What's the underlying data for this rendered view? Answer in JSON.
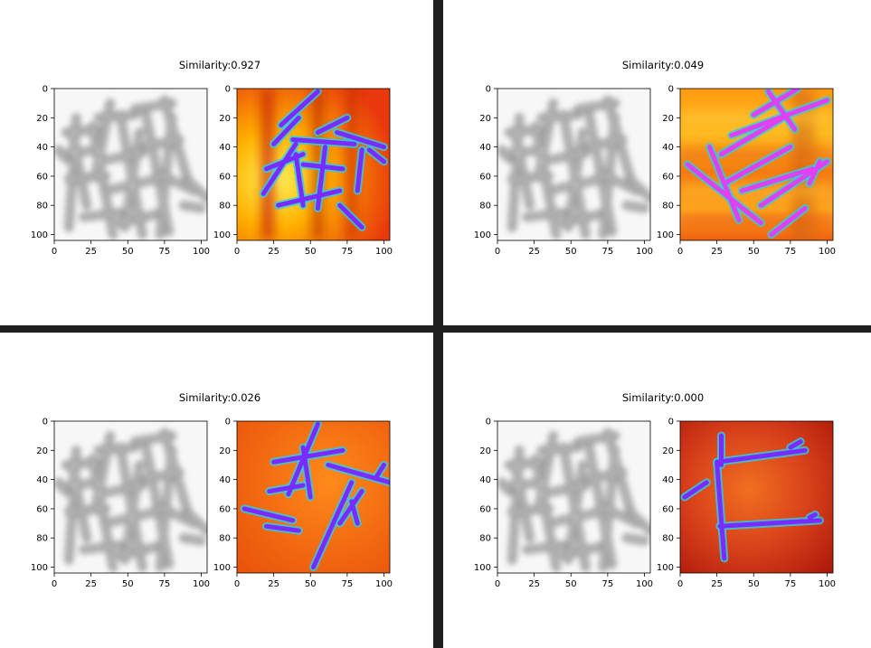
{
  "chart_data": [
    {
      "type": "heatmap",
      "title": "Similarity:0.927",
      "similarity": 0.927,
      "panels": [
        {
          "name": "",
          "colormap": "gray",
          "xlim": [
            0,
            104
          ],
          "ylim": [
            104,
            0
          ],
          "x_ticks": [
            0,
            25,
            50,
            75,
            100
          ],
          "y_ticks": [
            0,
            20,
            40,
            60,
            80,
            100
          ]
        },
        {
          "name": "",
          "colormap": "autumn-with-strokes",
          "xlim": [
            0,
            104
          ],
          "ylim": [
            104,
            0
          ],
          "x_ticks": [
            0,
            25,
            50,
            75,
            100
          ],
          "y_ticks": [
            0,
            20,
            40,
            60,
            80,
            100
          ]
        }
      ]
    },
    {
      "type": "heatmap",
      "title": "Similarity:0.049",
      "similarity": 0.049,
      "panels": [
        {
          "name": "",
          "colormap": "gray",
          "xlim": [
            0,
            104
          ],
          "ylim": [
            104,
            0
          ],
          "x_ticks": [
            0,
            25,
            50,
            75,
            100
          ],
          "y_ticks": [
            0,
            20,
            40,
            60,
            80,
            100
          ]
        },
        {
          "name": "",
          "colormap": "autumn-with-strokes",
          "xlim": [
            0,
            104
          ],
          "ylim": [
            104,
            0
          ],
          "x_ticks": [
            0,
            25,
            50,
            75,
            100
          ],
          "y_ticks": [
            0,
            20,
            40,
            60,
            80,
            100
          ]
        }
      ]
    },
    {
      "type": "heatmap",
      "title": "Similarity:0.026",
      "similarity": 0.026,
      "panels": [
        {
          "name": "",
          "colormap": "gray",
          "xlim": [
            0,
            104
          ],
          "ylim": [
            104,
            0
          ],
          "x_ticks": [
            0,
            25,
            50,
            75,
            100
          ],
          "y_ticks": [
            0,
            20,
            40,
            60,
            80,
            100
          ]
        },
        {
          "name": "",
          "colormap": "autumn-with-strokes",
          "xlim": [
            0,
            104
          ],
          "ylim": [
            104,
            0
          ],
          "x_ticks": [
            0,
            25,
            50,
            75,
            100
          ],
          "y_ticks": [
            0,
            20,
            40,
            60,
            80,
            100
          ]
        }
      ]
    },
    {
      "type": "heatmap",
      "title": "Similarity:0.000",
      "similarity": 0.0,
      "panels": [
        {
          "name": "",
          "colormap": "gray",
          "xlim": [
            0,
            104
          ],
          "ylim": [
            104,
            0
          ],
          "x_ticks": [
            0,
            25,
            50,
            75,
            100
          ],
          "y_ticks": [
            0,
            20,
            40,
            60,
            80,
            100
          ]
        },
        {
          "name": "",
          "colormap": "autumn-with-strokes",
          "xlim": [
            0,
            104
          ],
          "ylim": [
            104,
            0
          ],
          "x_ticks": [
            0,
            25,
            50,
            75,
            100
          ],
          "y_ticks": [
            0,
            20,
            40,
            60,
            80,
            100
          ]
        }
      ]
    }
  ],
  "colors": {
    "divider": "#1e1e1e",
    "stroke_main": "#7a2bff",
    "stroke_glow": "#28d0e8",
    "stroke_pink": "#e040f0",
    "gray_stroke": "#8a8a8a"
  }
}
